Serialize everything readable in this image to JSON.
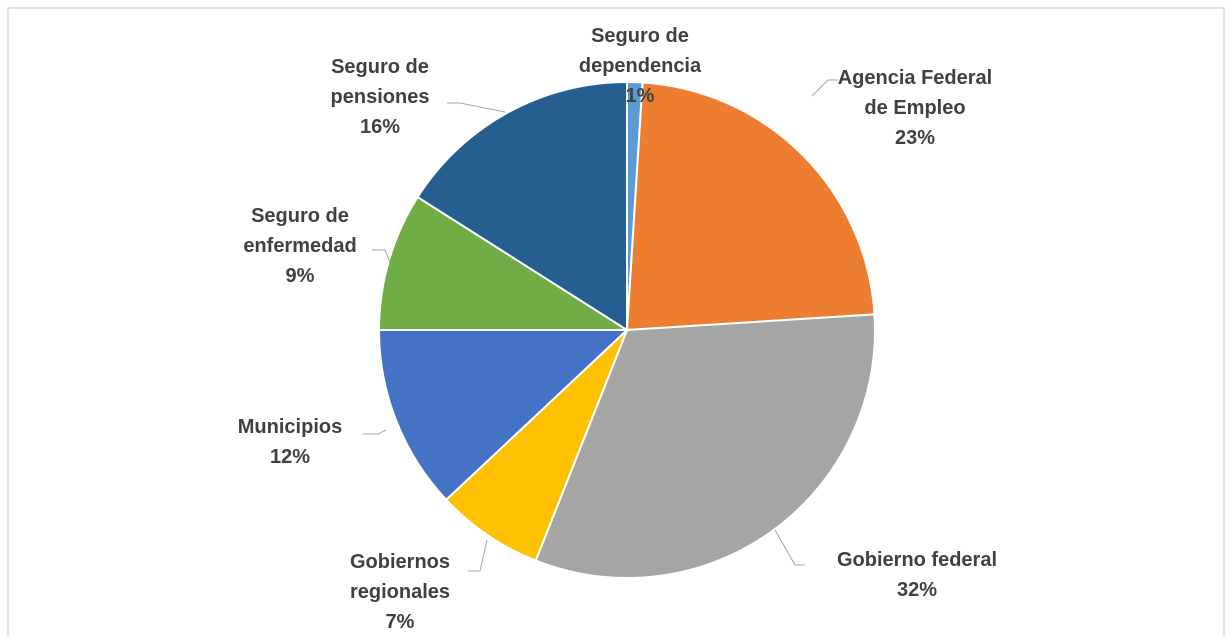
{
  "chart_data": {
    "type": "pie",
    "categories": [
      "Seguro de dependencia",
      "Agencia Federal de Empleo",
      "Gobierno federal",
      "Gobiernos regionales",
      "Municipios",
      "Seguro de enfermedad",
      "Seguro de pensiones"
    ],
    "values": [
      1,
      23,
      32,
      7,
      12,
      9,
      16
    ],
    "value_labels": [
      "1%",
      "23%",
      "32%",
      "7%",
      "12%",
      "9%",
      "16%"
    ],
    "colors": [
      "#5B9BD5",
      "#ED7D31",
      "#A5A5A5",
      "#FFC000",
      "#4472C4",
      "#70AD47",
      "#255E91"
    ]
  }
}
